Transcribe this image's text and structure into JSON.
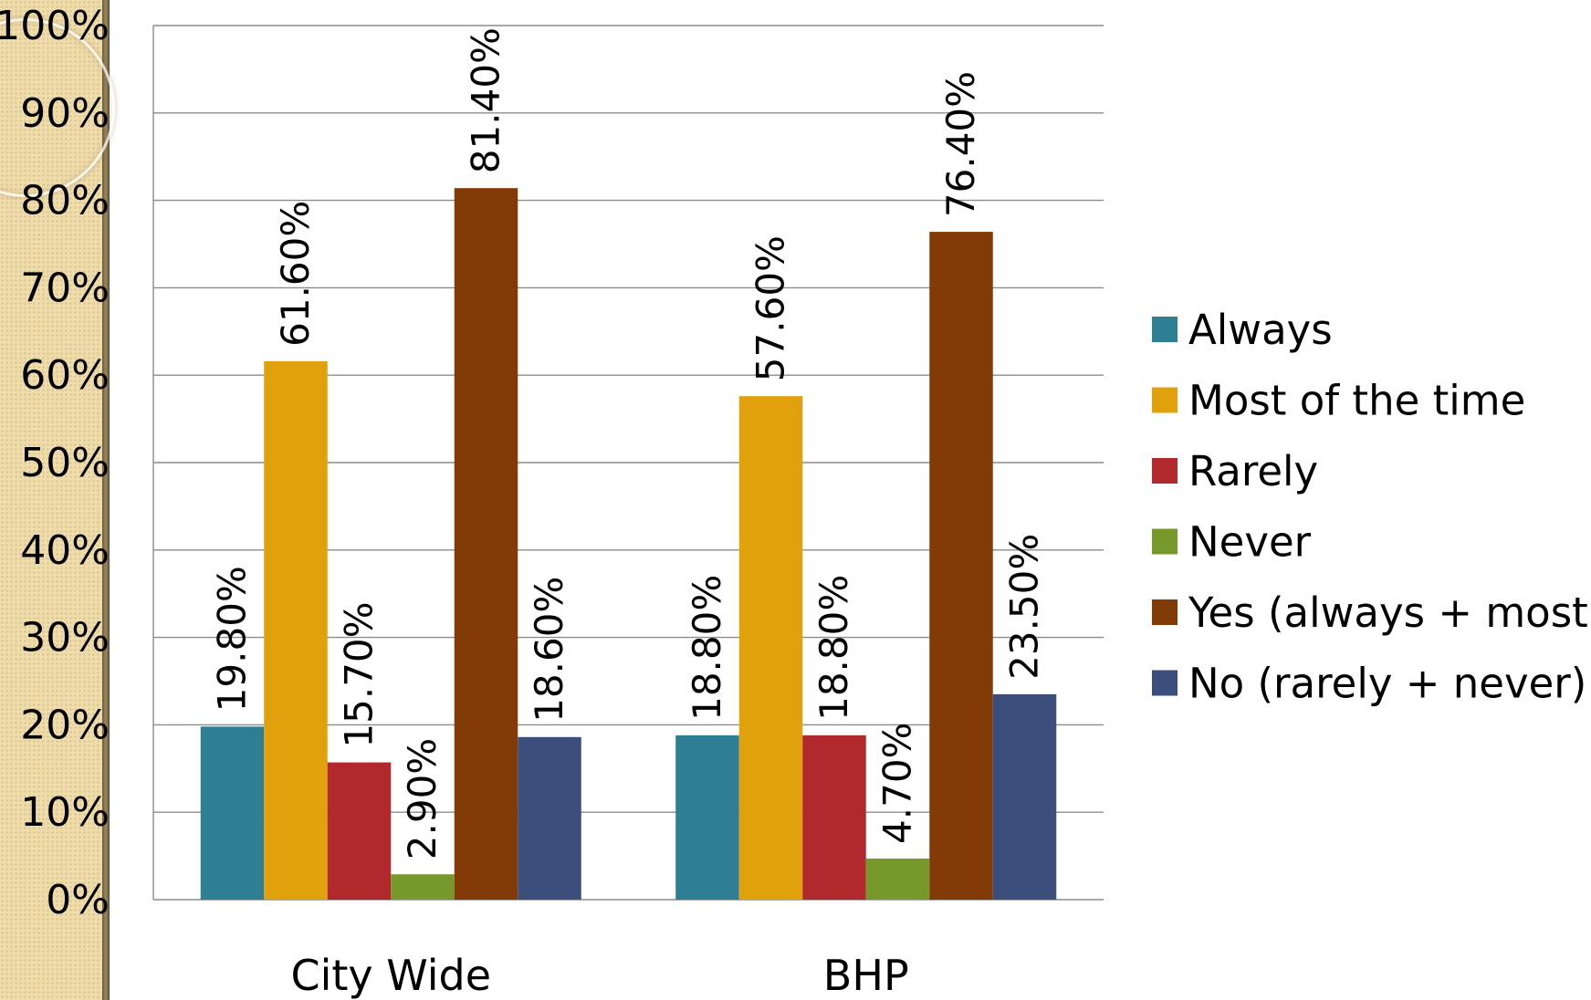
{
  "chart_data": {
    "type": "bar",
    "categories": [
      "City Wide",
      "BHP"
    ],
    "series": [
      {
        "name": "Always",
        "color": "#2e7f93",
        "values": [
          19.8,
          18.8
        ],
        "labels": [
          "19.80%",
          "18.80%"
        ]
      },
      {
        "name": "Most of the time",
        "color": "#e1a10c",
        "values": [
          61.6,
          57.6
        ],
        "labels": [
          "61.60%",
          "57.60%"
        ]
      },
      {
        "name": "Rarely",
        "color": "#b1292c",
        "values": [
          15.7,
          18.8
        ],
        "labels": [
          "15.70%",
          "18.80%"
        ]
      },
      {
        "name": "Never",
        "color": "#77992b",
        "values": [
          2.9,
          4.7
        ],
        "labels": [
          "2.90%",
          "4.70%"
        ]
      },
      {
        "name": "Yes (always + most)",
        "color": "#823a06",
        "values": [
          81.4,
          76.4
        ],
        "labels": [
          "81.40%",
          "76.40%"
        ]
      },
      {
        "name": "No (rarely + never)",
        "color": "#3c4f7c",
        "values": [
          18.6,
          23.5
        ],
        "labels": [
          "18.60%",
          "23.50%"
        ]
      }
    ],
    "ylim": [
      0,
      100
    ],
    "yticks": [
      "0%",
      "10%",
      "20%",
      "30%",
      "40%",
      "50%",
      "60%",
      "70%",
      "80%",
      "90%",
      "100%"
    ],
    "grid": true,
    "legend": "right",
    "title": "",
    "xlabel": "",
    "ylabel": ""
  }
}
